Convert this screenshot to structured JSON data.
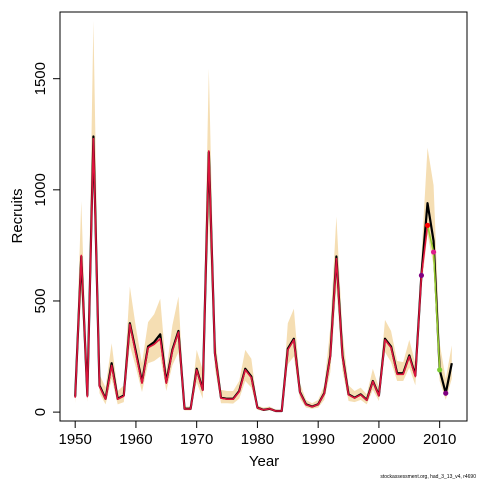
{
  "chart_data": {
    "type": "line",
    "title": "",
    "xlabel": "Year",
    "ylabel": "Recruits",
    "xlim": [
      1947.5,
      2014.5
    ],
    "ylim": [
      -40,
      1800
    ],
    "xticks": [
      1950,
      1960,
      1970,
      1980,
      1990,
      2000,
      2010
    ],
    "yticks": [
      0,
      500,
      1000,
      1500
    ],
    "footnote": "stockassessment.org, had_3_13_v4, r4690",
    "colors": {
      "band": "#f5deb3",
      "main": "#000000",
      "overlay": "#dc143c",
      "overlay_end": "#9acd32",
      "point_red": "#ff0000",
      "point_magenta": "#dd1c8c",
      "point_green": "#7ccd32",
      "point_purple": "#800080"
    },
    "x": [
      1950,
      1951,
      1952,
      1953,
      1954,
      1955,
      1956,
      1957,
      1958,
      1959,
      1960,
      1961,
      1962,
      1963,
      1964,
      1965,
      1966,
      1967,
      1968,
      1969,
      1970,
      1971,
      1972,
      1973,
      1974,
      1975,
      1976,
      1977,
      1978,
      1979,
      1980,
      1981,
      1982,
      1983,
      1984,
      1985,
      1986,
      1987,
      1988,
      1989,
      1990,
      1991,
      1992,
      1993,
      1994,
      1995,
      1996,
      1997,
      1998,
      1999,
      2000,
      2001,
      2002,
      2003,
      2004,
      2005,
      2006,
      2007,
      2008,
      2009,
      2010,
      2011,
      2012
    ],
    "series": [
      {
        "values": [
          70,
          700,
          75,
          1240,
          120,
          60,
          220,
          60,
          75,
          400,
          270,
          135,
          295,
          315,
          350,
          135,
          280,
          365,
          15,
          15,
          195,
          100,
          1170,
          265,
          65,
          60,
          60,
          95,
          195,
          160,
          20,
          10,
          15,
          5,
          5,
          285,
          330,
          90,
          35,
          25,
          35,
          85,
          255,
          700,
          255,
          80,
          65,
          80,
          55,
          140,
          75,
          330,
          295,
          175,
          175,
          255,
          165,
          620,
          940,
          770,
          190,
          85,
          220
        ]
      }
    ],
    "upper": [
      110,
      950,
      120,
      1760,
      170,
      110,
      310,
      95,
      120,
      565,
      380,
      220,
      405,
      440,
      510,
      185,
      390,
      520,
      25,
      25,
      280,
      190,
      1545,
      350,
      100,
      95,
      95,
      140,
      280,
      240,
      30,
      20,
      25,
      12,
      10,
      400,
      465,
      130,
      55,
      40,
      55,
      120,
      380,
      880,
      360,
      120,
      95,
      110,
      80,
      195,
      110,
      415,
      365,
      230,
      225,
      325,
      220,
      700,
      1190,
      1020,
      310,
      150,
      300
    ],
    "lower": [
      40,
      540,
      45,
      1050,
      85,
      35,
      150,
      35,
      45,
      300,
      200,
      90,
      220,
      230,
      250,
      95,
      210,
      270,
      8,
      8,
      135,
      60,
      880,
      195,
      40,
      40,
      38,
      60,
      140,
      110,
      10,
      5,
      8,
      2,
      2,
      215,
      250,
      60,
      20,
      15,
      20,
      55,
      180,
      560,
      185,
      50,
      45,
      55,
      35,
      100,
      50,
      270,
      225,
      140,
      140,
      200,
      120,
      560,
      800,
      660,
      140,
      55,
      150
    ],
    "overlay_values": [
      65,
      705,
      70,
      1230,
      115,
      58,
      210,
      58,
      72,
      395,
      260,
      130,
      290,
      305,
      330,
      130,
      275,
      360,
      14,
      14,
      190,
      98,
      1175,
      262,
      63,
      58,
      58,
      92,
      190,
      155,
      19,
      10,
      15,
      5,
      5,
      280,
      325,
      88,
      33,
      24,
      34,
      83,
      250,
      690,
      250,
      78,
      63,
      78,
      53,
      138,
      73,
      325,
      290,
      170,
      170,
      250,
      160,
      615,
      840
    ],
    "overlay_end_values": [
      [
        2008,
        840
      ],
      [
        2009,
        720
      ],
      [
        2010,
        190
      ]
    ],
    "points": [
      {
        "x": 2007,
        "y": 615,
        "color": "point_purple"
      },
      {
        "x": 2008,
        "y": 840,
        "color": "point_red"
      },
      {
        "x": 2009,
        "y": 720,
        "color": "point_magenta"
      },
      {
        "x": 2010,
        "y": 190,
        "color": "point_green"
      },
      {
        "x": 2011,
        "y": 85,
        "color": "point_purple"
      }
    ]
  }
}
